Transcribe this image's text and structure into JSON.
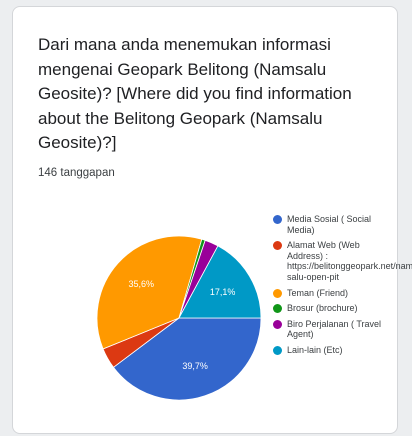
{
  "question": "Dari mana anda menemukan informasi mengenai Geopark Belitong (Namsalu Geosite)? [Where did you find information about the Belitong Geopark (Namsalu Geosite)?]",
  "response_count": "146 tanggapan",
  "chart_data": {
    "type": "pie",
    "title": "Dari mana anda menemukan informasi mengenai Geopark Belitong (Namsalu Geosite)? [Where did you find information about the Belitong Geopark (Namsalu Geosite)?]",
    "categories": [
      "Media Sosial ( Social Media)",
      "Alamat Web (Web Address) : https://belitonggeopark.net/nam-salu-open-pit",
      "Teman (Friend)",
      "Brosur (brochure)",
      "Biro Perjalanan ( Travel Agent)",
      "Lain-lain (Etc)"
    ],
    "values": [
      39.7,
      4.1,
      35.6,
      0.7,
      2.7,
      17.1
    ],
    "slice_labels": [
      "39,7%",
      "",
      "35,6%",
      "",
      "",
      "17,1%"
    ],
    "colors": [
      "#3366cc",
      "#dc3912",
      "#ff9900",
      "#109618",
      "#990099",
      "#0099c6"
    ],
    "legend_position": "right"
  }
}
